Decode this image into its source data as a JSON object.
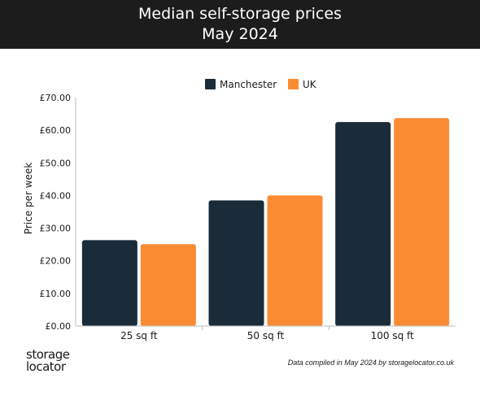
{
  "header": {
    "title_line1": "Median self-storage prices",
    "title_line2": "May 2024"
  },
  "footer": {
    "logo_line1": "storage",
    "logo_line2": "locator",
    "note": "Data compiled in May 2024 by storagelocator.co.uk"
  },
  "colors": {
    "header_bg": "#1c1c1c",
    "Manchester": "#1a2b3a",
    "UK": "#fb8b33"
  },
  "chart_data": {
    "type": "bar",
    "title": "Median self-storage prices May 2024",
    "ylabel": "Price per week",
    "xlabel": "",
    "categories": [
      "25 sq ft",
      "50 sq ft",
      "100 sq ft"
    ],
    "series": [
      {
        "name": "Manchester",
        "values": [
          26.3,
          38.5,
          62.5
        ]
      },
      {
        "name": "UK",
        "values": [
          25.1,
          40.0,
          63.7
        ]
      }
    ],
    "ylim": [
      0,
      70
    ],
    "yticks": [
      "£0.00",
      "£10.00",
      "£20.00",
      "£30.00",
      "£40.00",
      "£50.00",
      "£60.00",
      "£70.00"
    ],
    "grid": false,
    "legend_position": "top-center"
  }
}
